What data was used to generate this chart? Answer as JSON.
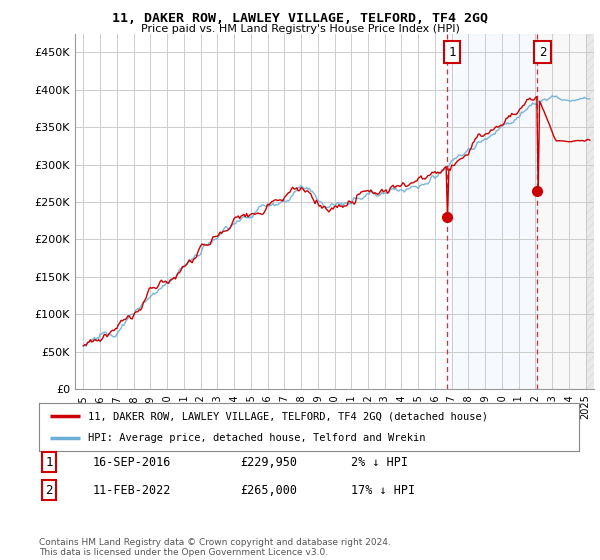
{
  "title": "11, DAKER ROW, LAWLEY VILLAGE, TELFORD, TF4 2GQ",
  "subtitle": "Price paid vs. HM Land Registry's House Price Index (HPI)",
  "ylabel_ticks": [
    "£0",
    "£50K",
    "£100K",
    "£150K",
    "£200K",
    "£250K",
    "£300K",
    "£350K",
    "£400K",
    "£450K"
  ],
  "ytick_values": [
    0,
    50000,
    100000,
    150000,
    200000,
    250000,
    300000,
    350000,
    400000,
    450000
  ],
  "ylim": [
    0,
    475000
  ],
  "xlim_start": 1994.5,
  "xlim_end": 2025.5,
  "hpi_color": "#6baed6",
  "hpi_fill_color": "#ddeeff",
  "price_color": "#cc0000",
  "sale1_date": 2016.71,
  "sale1_price": 229950,
  "sale2_date": 2022.12,
  "sale2_price": 265000,
  "legend_line1": "11, DAKER ROW, LAWLEY VILLAGE, TELFORD, TF4 2GQ (detached house)",
  "legend_line2": "HPI: Average price, detached house, Telford and Wrekin",
  "table_row1_label": "1",
  "table_row1_date": "16-SEP-2016",
  "table_row1_price": "£229,950",
  "table_row1_hpi": "2% ↓ HPI",
  "table_row2_label": "2",
  "table_row2_date": "11-FEB-2022",
  "table_row2_price": "£265,000",
  "table_row2_hpi": "17% ↓ HPI",
  "footnote": "Contains HM Land Registry data © Crown copyright and database right 2024.\nThis data is licensed under the Open Government Licence v3.0.",
  "background_color": "#ffffff",
  "grid_color": "#cccccc"
}
